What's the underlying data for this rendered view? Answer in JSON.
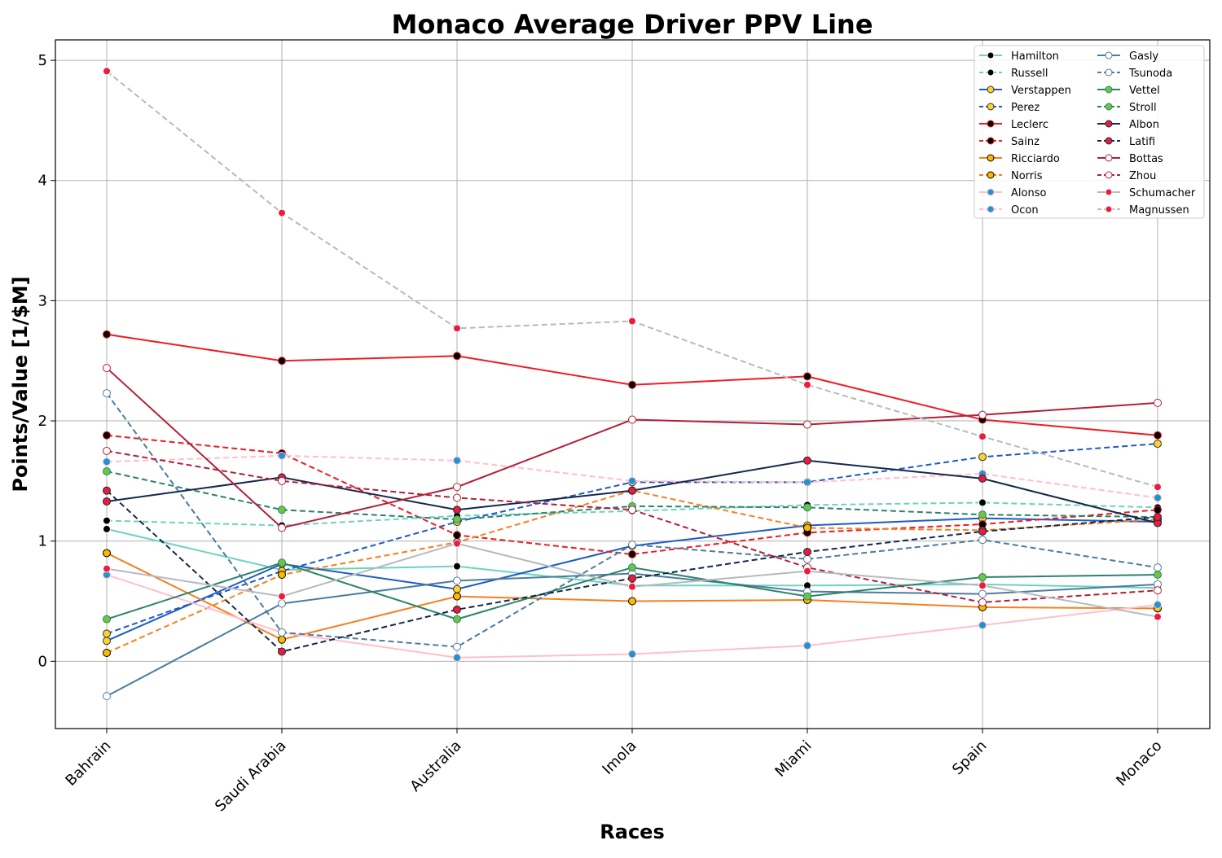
{
  "chart_data": {
    "type": "line",
    "title": "Monaco Average Driver PPV Line",
    "xlabel": "Races",
    "ylabel": "Points/Value [1/$M]",
    "categories": [
      "Bahrain",
      "Saudi Arabia",
      "Australia",
      "Imola",
      "Miami",
      "Spain",
      "Monaco"
    ],
    "yticks": [
      0,
      1,
      2,
      3,
      4,
      5
    ],
    "ylim": [
      -0.56,
      5.17
    ],
    "grid": true,
    "legend_position": "top-right",
    "legend_columns": 2,
    "series": [
      {
        "name": "Hamilton",
        "color": "#6cd3bf",
        "dash": "solid",
        "marker_fill": "#000000",
        "marker_edge": "#ffffff",
        "values": [
          1.1,
          0.76,
          0.79,
          0.63,
          0.63,
          0.64,
          0.61
        ]
      },
      {
        "name": "Russell",
        "color": "#6cd3bf",
        "dash": "dashed",
        "marker_fill": "#000000",
        "marker_edge": "#ffffff",
        "values": [
          1.17,
          1.13,
          1.21,
          1.25,
          1.3,
          1.32,
          1.28
        ]
      },
      {
        "name": "Verstappen",
        "color": "#1e5bc6",
        "dash": "solid",
        "marker_fill": "#ffd12e",
        "marker_edge": "#333333",
        "values": [
          0.17,
          0.81,
          0.6,
          0.96,
          1.13,
          1.19,
          1.16
        ]
      },
      {
        "name": "Perez",
        "color": "#1e5bc6",
        "dash": "dashed",
        "marker_fill": "#ffd12e",
        "marker_edge": "#333333",
        "values": [
          0.23,
          0.75,
          1.16,
          1.49,
          1.49,
          1.7,
          1.81
        ]
      },
      {
        "name": "Leclerc",
        "color": "#ed1c24",
        "dash": "solid",
        "marker_fill": "#000000",
        "marker_edge": "#ed1c24",
        "values": [
          2.72,
          2.5,
          2.54,
          2.3,
          2.37,
          2.01,
          1.88
        ]
      },
      {
        "name": "Sainz",
        "color": "#ed1c24",
        "dash": "dashed",
        "marker_fill": "#000000",
        "marker_edge": "#ed1c24",
        "values": [
          1.88,
          1.73,
          1.05,
          0.89,
          1.07,
          1.14,
          1.26
        ]
      },
      {
        "name": "Ricciardo",
        "color": "#f58020",
        "dash": "solid",
        "marker_fill": "#ffb800",
        "marker_edge": "#000000",
        "values": [
          0.9,
          0.18,
          0.54,
          0.5,
          0.51,
          0.45,
          0.44
        ]
      },
      {
        "name": "Norris",
        "color": "#f58020",
        "dash": "dashed",
        "marker_fill": "#ffb800",
        "marker_edge": "#000000",
        "values": [
          0.07,
          0.72,
          0.99,
          1.42,
          1.11,
          1.09,
          1.18
        ]
      },
      {
        "name": "Alonso",
        "color": "#ffc0cb",
        "dash": "solid",
        "marker_fill": "#2293d1",
        "marker_edge": "#ffc0cb",
        "values": [
          0.72,
          0.24,
          0.03,
          0.06,
          0.13,
          0.3,
          0.47
        ]
      },
      {
        "name": "Ocon",
        "color": "#ffc0cb",
        "dash": "dashed",
        "marker_fill": "#2293d1",
        "marker_edge": "#ffc0cb",
        "values": [
          1.66,
          1.71,
          1.67,
          1.5,
          1.49,
          1.56,
          1.36
        ]
      },
      {
        "name": "Gasly",
        "color": "#4e7c9b",
        "dash": "solid",
        "marker_fill": "#ffffff",
        "marker_edge": "#4e7c9b",
        "values": [
          -0.29,
          0.48,
          0.67,
          0.73,
          0.58,
          0.56,
          0.64
        ]
      },
      {
        "name": "Tsunoda",
        "color": "#4e7c9b",
        "dash": "dashed",
        "marker_fill": "#ffffff",
        "marker_edge": "#4e7c9b",
        "values": [
          2.23,
          0.24,
          0.12,
          0.97,
          0.85,
          1.01,
          0.78
        ]
      },
      {
        "name": "Vettel",
        "color": "#2d826d",
        "dash": "solid",
        "marker_fill": "#6cc644",
        "marker_edge": "#2d826d",
        "values": [
          0.35,
          0.82,
          0.35,
          0.78,
          0.54,
          0.7,
          0.72
        ]
      },
      {
        "name": "Stroll",
        "color": "#2d826d",
        "dash": "dashed",
        "marker_fill": "#6cc644",
        "marker_edge": "#2d826d",
        "values": [
          1.58,
          1.26,
          1.18,
          1.29,
          1.28,
          1.22,
          1.2
        ]
      },
      {
        "name": "Albon",
        "color": "#15284b",
        "dash": "solid",
        "marker_fill": "#ed1c34",
        "marker_edge": "#15284b",
        "values": [
          1.33,
          1.53,
          1.26,
          1.42,
          1.67,
          1.52,
          1.15
        ]
      },
      {
        "name": "Latifi",
        "color": "#15284b",
        "dash": "dashed",
        "marker_fill": "#ed1c34",
        "marker_edge": "#15284b",
        "values": [
          1.42,
          0.08,
          0.43,
          0.69,
          0.91,
          1.08,
          1.2
        ]
      },
      {
        "name": "Bottas",
        "color": "#b12039",
        "dash": "solid",
        "marker_fill": "#ffffff",
        "marker_edge": "#b12039",
        "values": [
          2.44,
          1.11,
          1.45,
          2.01,
          1.97,
          2.05,
          2.15
        ]
      },
      {
        "name": "Zhou",
        "color": "#b12039",
        "dash": "dashed",
        "marker_fill": "#ffffff",
        "marker_edge": "#b12039",
        "values": [
          1.75,
          1.5,
          1.36,
          1.26,
          0.78,
          0.49,
          0.59
        ]
      },
      {
        "name": "Schumacher",
        "color": "#b6babd",
        "dash": "solid",
        "marker_fill": "#ed1c3c",
        "marker_edge": "#ffffff",
        "values": [
          0.77,
          0.54,
          0.98,
          0.62,
          0.75,
          0.63,
          0.37
        ]
      },
      {
        "name": "Magnussen",
        "color": "#b6babd",
        "dash": "dashed",
        "marker_fill": "#ed1c3c",
        "marker_edge": "#ffffff",
        "values": [
          4.91,
          3.73,
          2.77,
          2.83,
          2.3,
          1.87,
          1.45
        ]
      }
    ]
  }
}
